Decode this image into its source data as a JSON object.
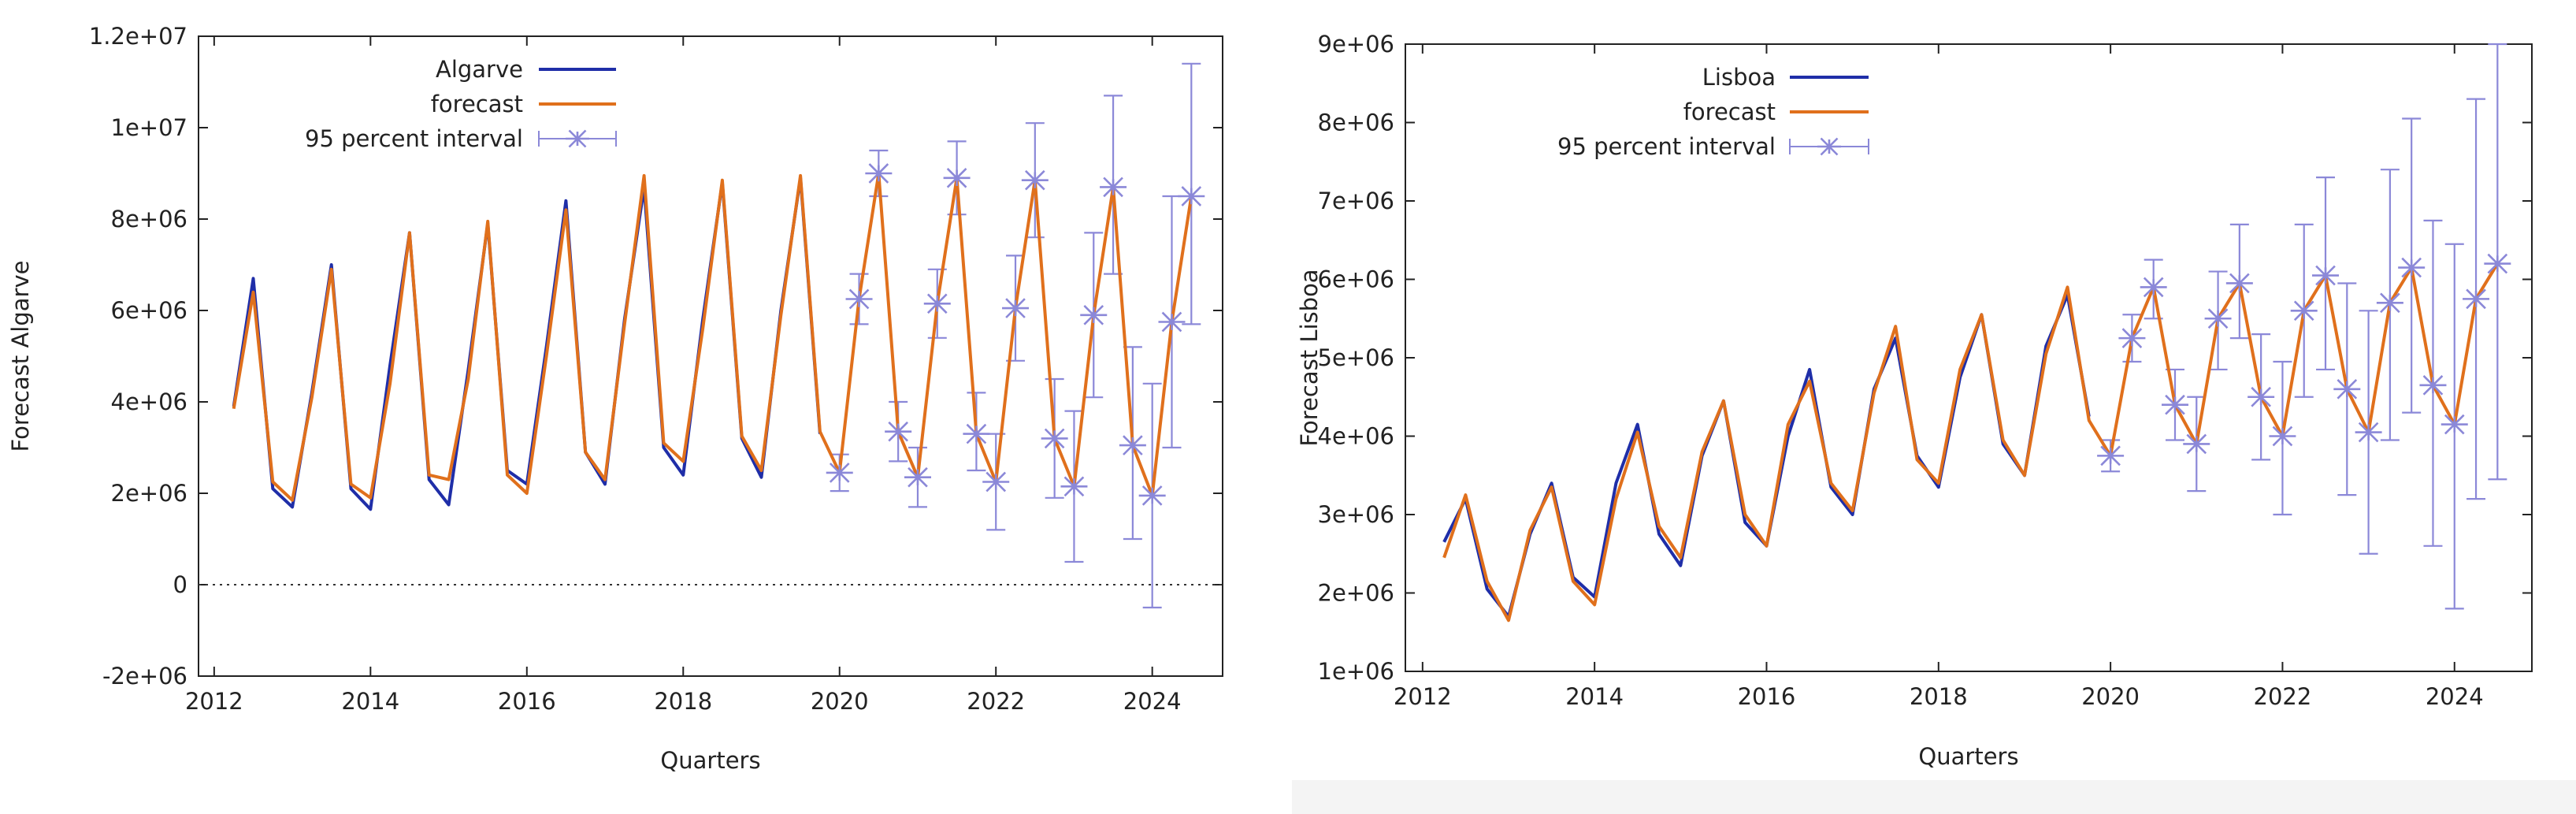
{
  "chart_data": [
    {
      "type": "line",
      "ylabel": "Forecast Algarve",
      "xlabel": "Quarters",
      "xlim": [
        2011.8,
        2024.9
      ],
      "ylim": [
        -2000000,
        12000000
      ],
      "x_ticks": [
        2012,
        2014,
        2016,
        2018,
        2020,
        2022,
        2024
      ],
      "y_ticks": [
        -2000000,
        0,
        2000000,
        4000000,
        6000000,
        8000000,
        10000000,
        12000000
      ],
      "y_tick_labels": [
        "-2e+06",
        "0",
        "2e+06",
        "4e+06",
        "6e+06",
        "8e+06",
        "1e+07",
        "1.2e+07"
      ],
      "zero_line": true,
      "legend": [
        "Algarve",
        "forecast",
        "95 percent interval"
      ],
      "legend_position": "top-left",
      "series": [
        {
          "name": "Algarve",
          "color": "#1f2ea8",
          "x": [
            2012.25,
            2012.5,
            2012.75,
            2013.0,
            2013.25,
            2013.5,
            2013.75,
            2014.0,
            2014.25,
            2014.5,
            2014.75,
            2015.0,
            2015.25,
            2015.5,
            2015.75,
            2016.0,
            2016.25,
            2016.5,
            2016.75,
            2017.0,
            2017.25,
            2017.5,
            2017.75,
            2018.0,
            2018.25,
            2018.5,
            2018.75,
            2019.0,
            2019.25,
            2019.5,
            2019.75
          ],
          "values": [
            3900000,
            6700000,
            2100000,
            1700000,
            4200000,
            7000000,
            2100000,
            1650000,
            4800000,
            7700000,
            2300000,
            1750000,
            4700000,
            7900000,
            2500000,
            2200000,
            5200000,
            8400000,
            2900000,
            2200000,
            5800000,
            8700000,
            3000000,
            2400000,
            5800000,
            8800000,
            3200000,
            2350000,
            6000000,
            8900000,
            3300000
          ]
        },
        {
          "name": "forecast",
          "color": "#e0701c",
          "x": [
            2012.25,
            2012.5,
            2012.75,
            2013.0,
            2013.25,
            2013.5,
            2013.75,
            2014.0,
            2014.25,
            2014.5,
            2014.75,
            2015.0,
            2015.25,
            2015.5,
            2015.75,
            2016.0,
            2016.25,
            2016.5,
            2016.75,
            2017.0,
            2017.25,
            2017.5,
            2017.75,
            2018.0,
            2018.25,
            2018.5,
            2018.75,
            2019.0,
            2019.25,
            2019.5,
            2019.75,
            2020.0,
            2020.25,
            2020.5,
            2020.75,
            2021.0,
            2021.25,
            2021.5,
            2021.75,
            2022.0,
            2022.25,
            2022.5,
            2022.75,
            2023.0,
            2023.25,
            2023.5,
            2023.75,
            2024.0,
            2024.25,
            2024.5
          ],
          "values": [
            3850000,
            6400000,
            2250000,
            1850000,
            4100000,
            6900000,
            2200000,
            1900000,
            4400000,
            7700000,
            2400000,
            2300000,
            4500000,
            7950000,
            2400000,
            2000000,
            5000000,
            8200000,
            2900000,
            2300000,
            5700000,
            8950000,
            3100000,
            2700000,
            5600000,
            8850000,
            3250000,
            2500000,
            5900000,
            8950000,
            3350000,
            2450000,
            6250000,
            9000000,
            3350000,
            2350000,
            6150000,
            8900000,
            3300000,
            2250000,
            6050000,
            8850000,
            3200000,
            2150000,
            5900000,
            8700000,
            3050000,
            1950000,
            5750000,
            8500000
          ]
        }
      ],
      "interval": {
        "name": "95 percent interval",
        "color": "#8b88d8",
        "x": [
          2020.0,
          2020.25,
          2020.5,
          2020.75,
          2021.0,
          2021.25,
          2021.5,
          2021.75,
          2022.0,
          2022.25,
          2022.5,
          2022.75,
          2023.0,
          2023.25,
          2023.5,
          2023.75,
          2024.0,
          2024.25,
          2024.5
        ],
        "values": [
          2450000,
          6250000,
          9000000,
          3350000,
          2350000,
          6150000,
          8900000,
          3300000,
          2250000,
          6050000,
          8850000,
          3200000,
          2150000,
          5900000,
          8700000,
          3050000,
          1950000,
          5750000,
          8500000
        ],
        "low": [
          2050000,
          5700000,
          8500000,
          2700000,
          1700000,
          5400000,
          8100000,
          2500000,
          1200000,
          4900000,
          7600000,
          1900000,
          500000,
          4100000,
          6800000,
          1000000,
          -500000,
          3000000,
          5700000
        ],
        "high": [
          2850000,
          6800000,
          9500000,
          4000000,
          3000000,
          6900000,
          9700000,
          4200000,
          3300000,
          7200000,
          10100000,
          4500000,
          3800000,
          7700000,
          10700000,
          5200000,
          4400000,
          8500000,
          11400000
        ]
      }
    },
    {
      "type": "line",
      "ylabel": "Forecast Lisboa",
      "xlabel": "Quarters",
      "xlim": [
        2011.8,
        2024.9
      ],
      "ylim": [
        1000000,
        9000000
      ],
      "x_ticks": [
        2012,
        2014,
        2016,
        2018,
        2020,
        2022,
        2024
      ],
      "y_ticks": [
        1000000,
        2000000,
        3000000,
        4000000,
        5000000,
        6000000,
        7000000,
        8000000,
        9000000
      ],
      "y_tick_labels": [
        "1e+06",
        "2e+06",
        "3e+06",
        "4e+06",
        "5e+06",
        "6e+06",
        "7e+06",
        "8e+06",
        "9e+06"
      ],
      "zero_line": false,
      "legend": [
        "Lisboa",
        "forecast",
        "95 percent interval"
      ],
      "legend_position": "top-left",
      "series": [
        {
          "name": "Lisboa",
          "color": "#1f2ea8",
          "x": [
            2012.25,
            2012.5,
            2012.75,
            2013.0,
            2013.25,
            2013.5,
            2013.75,
            2014.0,
            2014.25,
            2014.5,
            2014.75,
            2015.0,
            2015.25,
            2015.5,
            2015.75,
            2016.0,
            2016.25,
            2016.5,
            2016.75,
            2017.0,
            2017.25,
            2017.5,
            2017.75,
            2018.0,
            2018.25,
            2018.5,
            2018.75,
            2019.0,
            2019.25,
            2019.5,
            2019.75
          ],
          "values": [
            2650000,
            3200000,
            2050000,
            1700000,
            2750000,
            3400000,
            2200000,
            1950000,
            3400000,
            4150000,
            2750000,
            2350000,
            3750000,
            4450000,
            2900000,
            2600000,
            4000000,
            4850000,
            3350000,
            3000000,
            4600000,
            5250000,
            3750000,
            3350000,
            4750000,
            5550000,
            3900000,
            3500000,
            5150000,
            5800000,
            4250000
          ]
        },
        {
          "name": "forecast",
          "color": "#e0701c",
          "x": [
            2012.25,
            2012.5,
            2012.75,
            2013.0,
            2013.25,
            2013.5,
            2013.75,
            2014.0,
            2014.25,
            2014.5,
            2014.75,
            2015.0,
            2015.25,
            2015.5,
            2015.75,
            2016.0,
            2016.25,
            2016.5,
            2016.75,
            2017.0,
            2017.25,
            2017.5,
            2017.75,
            2018.0,
            2018.25,
            2018.5,
            2018.75,
            2019.0,
            2019.25,
            2019.5,
            2019.75,
            2020.0,
            2020.25,
            2020.5,
            2020.75,
            2021.0,
            2021.25,
            2021.5,
            2021.75,
            2022.0,
            2022.25,
            2022.5,
            2022.75,
            2023.0,
            2023.25,
            2023.5,
            2023.75,
            2024.0,
            2024.25,
            2024.5
          ],
          "values": [
            2450000,
            3250000,
            2150000,
            1650000,
            2800000,
            3350000,
            2150000,
            1850000,
            3200000,
            4050000,
            2850000,
            2450000,
            3800000,
            4450000,
            3000000,
            2600000,
            4150000,
            4700000,
            3400000,
            3050000,
            4550000,
            5400000,
            3700000,
            3400000,
            4850000,
            5550000,
            3950000,
            3500000,
            5050000,
            5900000,
            4200000,
            3750000,
            5250000,
            5900000,
            4400000,
            3900000,
            5500000,
            5950000,
            4500000,
            4000000,
            5600000,
            6050000,
            4600000,
            4050000,
            5700000,
            6150000,
            4650000,
            4150000,
            5750000,
            6200000
          ]
        }
      ],
      "interval": {
        "name": "95 percent interval",
        "color": "#8b88d8",
        "x": [
          2020.0,
          2020.25,
          2020.5,
          2020.75,
          2021.0,
          2021.25,
          2021.5,
          2021.75,
          2022.0,
          2022.25,
          2022.5,
          2022.75,
          2023.0,
          2023.25,
          2023.5,
          2023.75,
          2024.0,
          2024.25,
          2024.5
        ],
        "values": [
          3750000,
          5250000,
          5900000,
          4400000,
          3900000,
          5500000,
          5950000,
          4500000,
          4000000,
          5600000,
          6050000,
          4600000,
          4050000,
          5700000,
          6150000,
          4650000,
          4150000,
          5750000,
          6200000
        ],
        "low": [
          3550000,
          4950000,
          5500000,
          3950000,
          3300000,
          4850000,
          5250000,
          3700000,
          3000000,
          4500000,
          4850000,
          3250000,
          2500000,
          3950000,
          4300000,
          2600000,
          1800000,
          3200000,
          3450000
        ],
        "high": [
          3950000,
          5550000,
          6250000,
          4850000,
          4500000,
          6100000,
          6700000,
          5300000,
          4950000,
          6700000,
          7300000,
          5950000,
          5600000,
          7400000,
          8050000,
          6750000,
          6450000,
          8300000,
          9000000
        ]
      }
    }
  ]
}
